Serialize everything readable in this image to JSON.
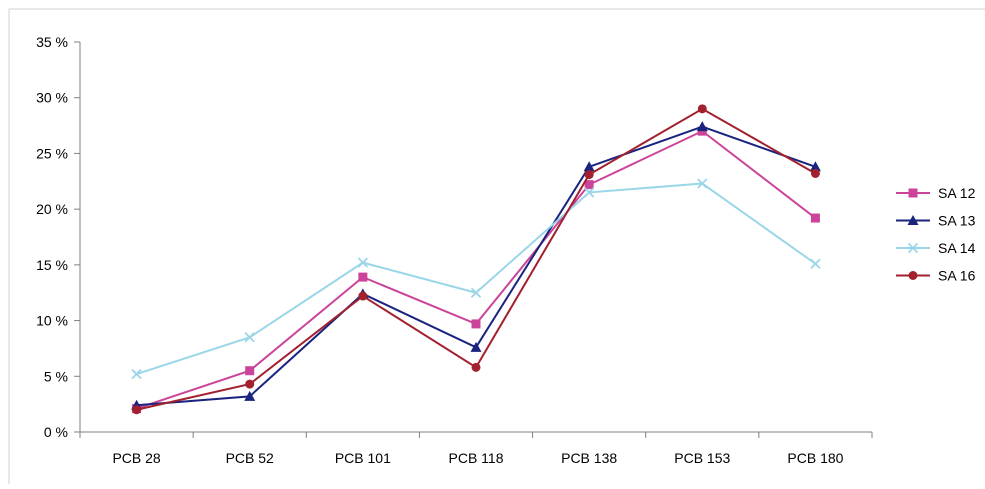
{
  "chart_data": {
    "type": "line",
    "categories": [
      "PCB 28",
      "PCB 52",
      "PCB 101",
      "PCB 118",
      "PCB 138",
      "PCB 153",
      "PCB 180"
    ],
    "y_ticks": [
      "0 %",
      "5 %",
      "10 %",
      "15 %",
      "20 %",
      "25 %",
      "30 %",
      "35 %"
    ],
    "ylim": [
      0,
      35
    ],
    "y_unit": "%",
    "grid": false,
    "legend_position": "right",
    "series": [
      {
        "name": "SA 12",
        "color": "#cc4499",
        "marker": "square",
        "values": [
          2.1,
          5.5,
          13.9,
          9.7,
          22.2,
          27.0,
          19.2
        ]
      },
      {
        "name": "SA 13",
        "color": "#1a237e",
        "marker": "triangle",
        "values": [
          2.4,
          3.2,
          12.4,
          7.6,
          23.8,
          27.4,
          23.8
        ]
      },
      {
        "name": "SA 14",
        "color": "#9ad6e8",
        "marker": "x",
        "values": [
          5.2,
          8.5,
          15.2,
          12.5,
          21.5,
          22.3,
          15.1
        ]
      },
      {
        "name": "SA 16",
        "color": "#a3202e",
        "marker": "circle",
        "values": [
          2.0,
          4.3,
          12.2,
          5.8,
          23.1,
          29.0,
          23.2
        ]
      }
    ]
  }
}
